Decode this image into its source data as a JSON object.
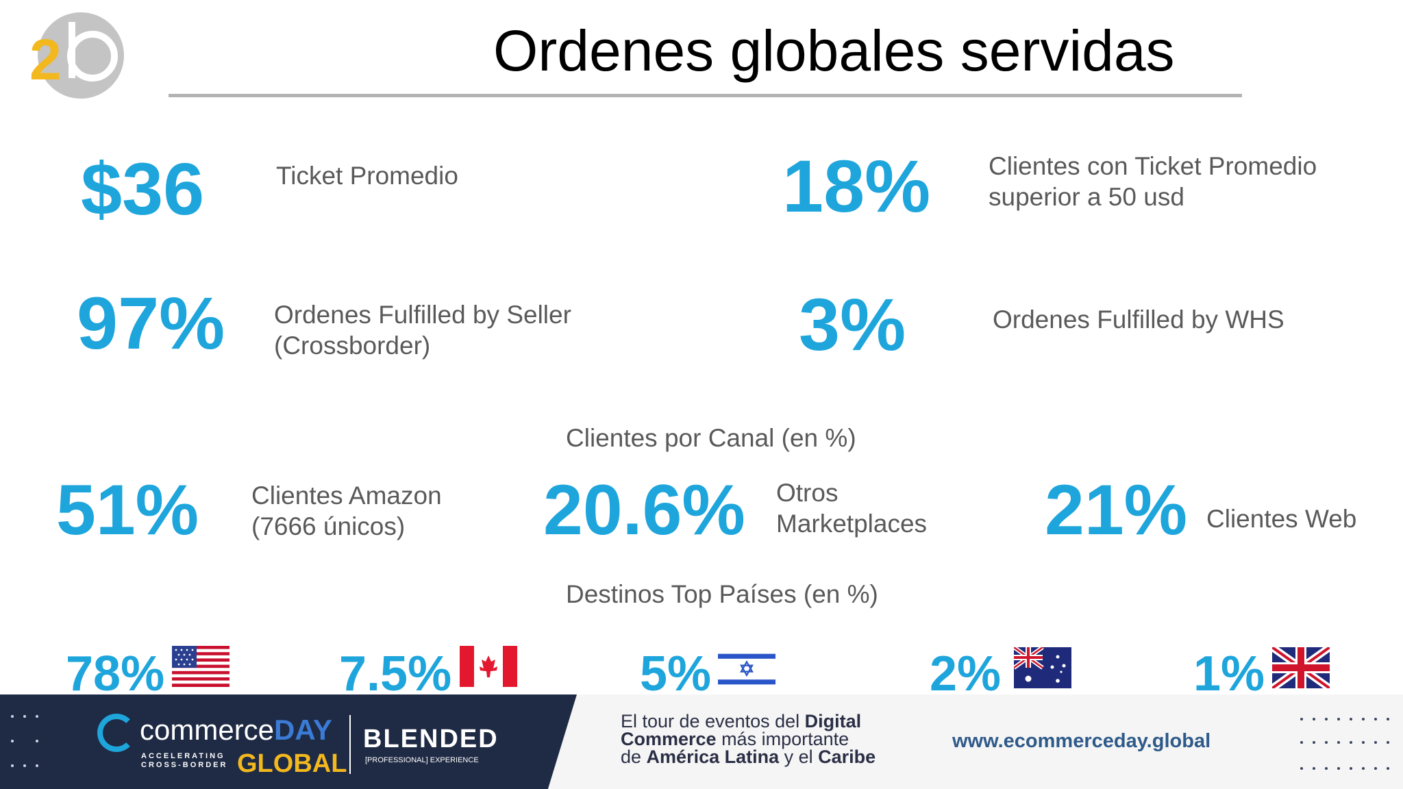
{
  "logo": {
    "text": "2b"
  },
  "title": "Ordenes globales servidas",
  "stats": [
    {
      "value": "$36",
      "label": "Ticket Promedio"
    },
    {
      "value": "18%",
      "label": "Clientes con Ticket Promedio\nsuperior a 50 usd"
    },
    {
      "value": "97%",
      "label": "Ordenes Fulfilled by Seller\n(Crossborder)"
    },
    {
      "value": "3%",
      "label": "Ordenes Fulfilled by WHS"
    }
  ],
  "channels": {
    "heading": "Clientes por Canal (en %)",
    "items": [
      {
        "value": "51%",
        "label": "Clientes Amazon\n(7666 únicos)"
      },
      {
        "value": "20.6%",
        "label": "Otros\nMarketplaces"
      },
      {
        "value": "21%",
        "label": "Clientes Web"
      }
    ]
  },
  "destinations": {
    "heading": "Destinos Top Países (en %)",
    "items": [
      {
        "value": "78%",
        "flag": "usa-flag-icon"
      },
      {
        "value": "7.5%",
        "flag": "canada-flag-icon"
      },
      {
        "value": "5%",
        "flag": "israel-flag-icon"
      },
      {
        "value": "2%",
        "flag": "australia-flag-icon"
      },
      {
        "value": "1%",
        "flag": "uk-flag-icon"
      }
    ]
  },
  "banner": {
    "brand_commerce": "commerce",
    "brand_day": "DAY",
    "tagline_1": "ACCELERATING",
    "tagline_2": "CROSS-BORDER",
    "brand_global": "GLOBAL",
    "blended": "BLENDED",
    "blended_sub": "[PROFESSIONAL] EXPERIENCE",
    "tour_1a": "El tour de eventos del ",
    "tour_1b": "Digital",
    "tour_2a": "Commerce",
    "tour_2b": " más importante",
    "tour_3a": "de ",
    "tour_3b": "América Latina",
    "tour_3c": " y el ",
    "tour_3d": "Caribe",
    "url": "www.ecommerceday.global"
  },
  "colors": {
    "accent": "#1ea5dc",
    "text": "#595959",
    "banner_dark": "#1f2a44",
    "url": "#2e5a8a"
  }
}
